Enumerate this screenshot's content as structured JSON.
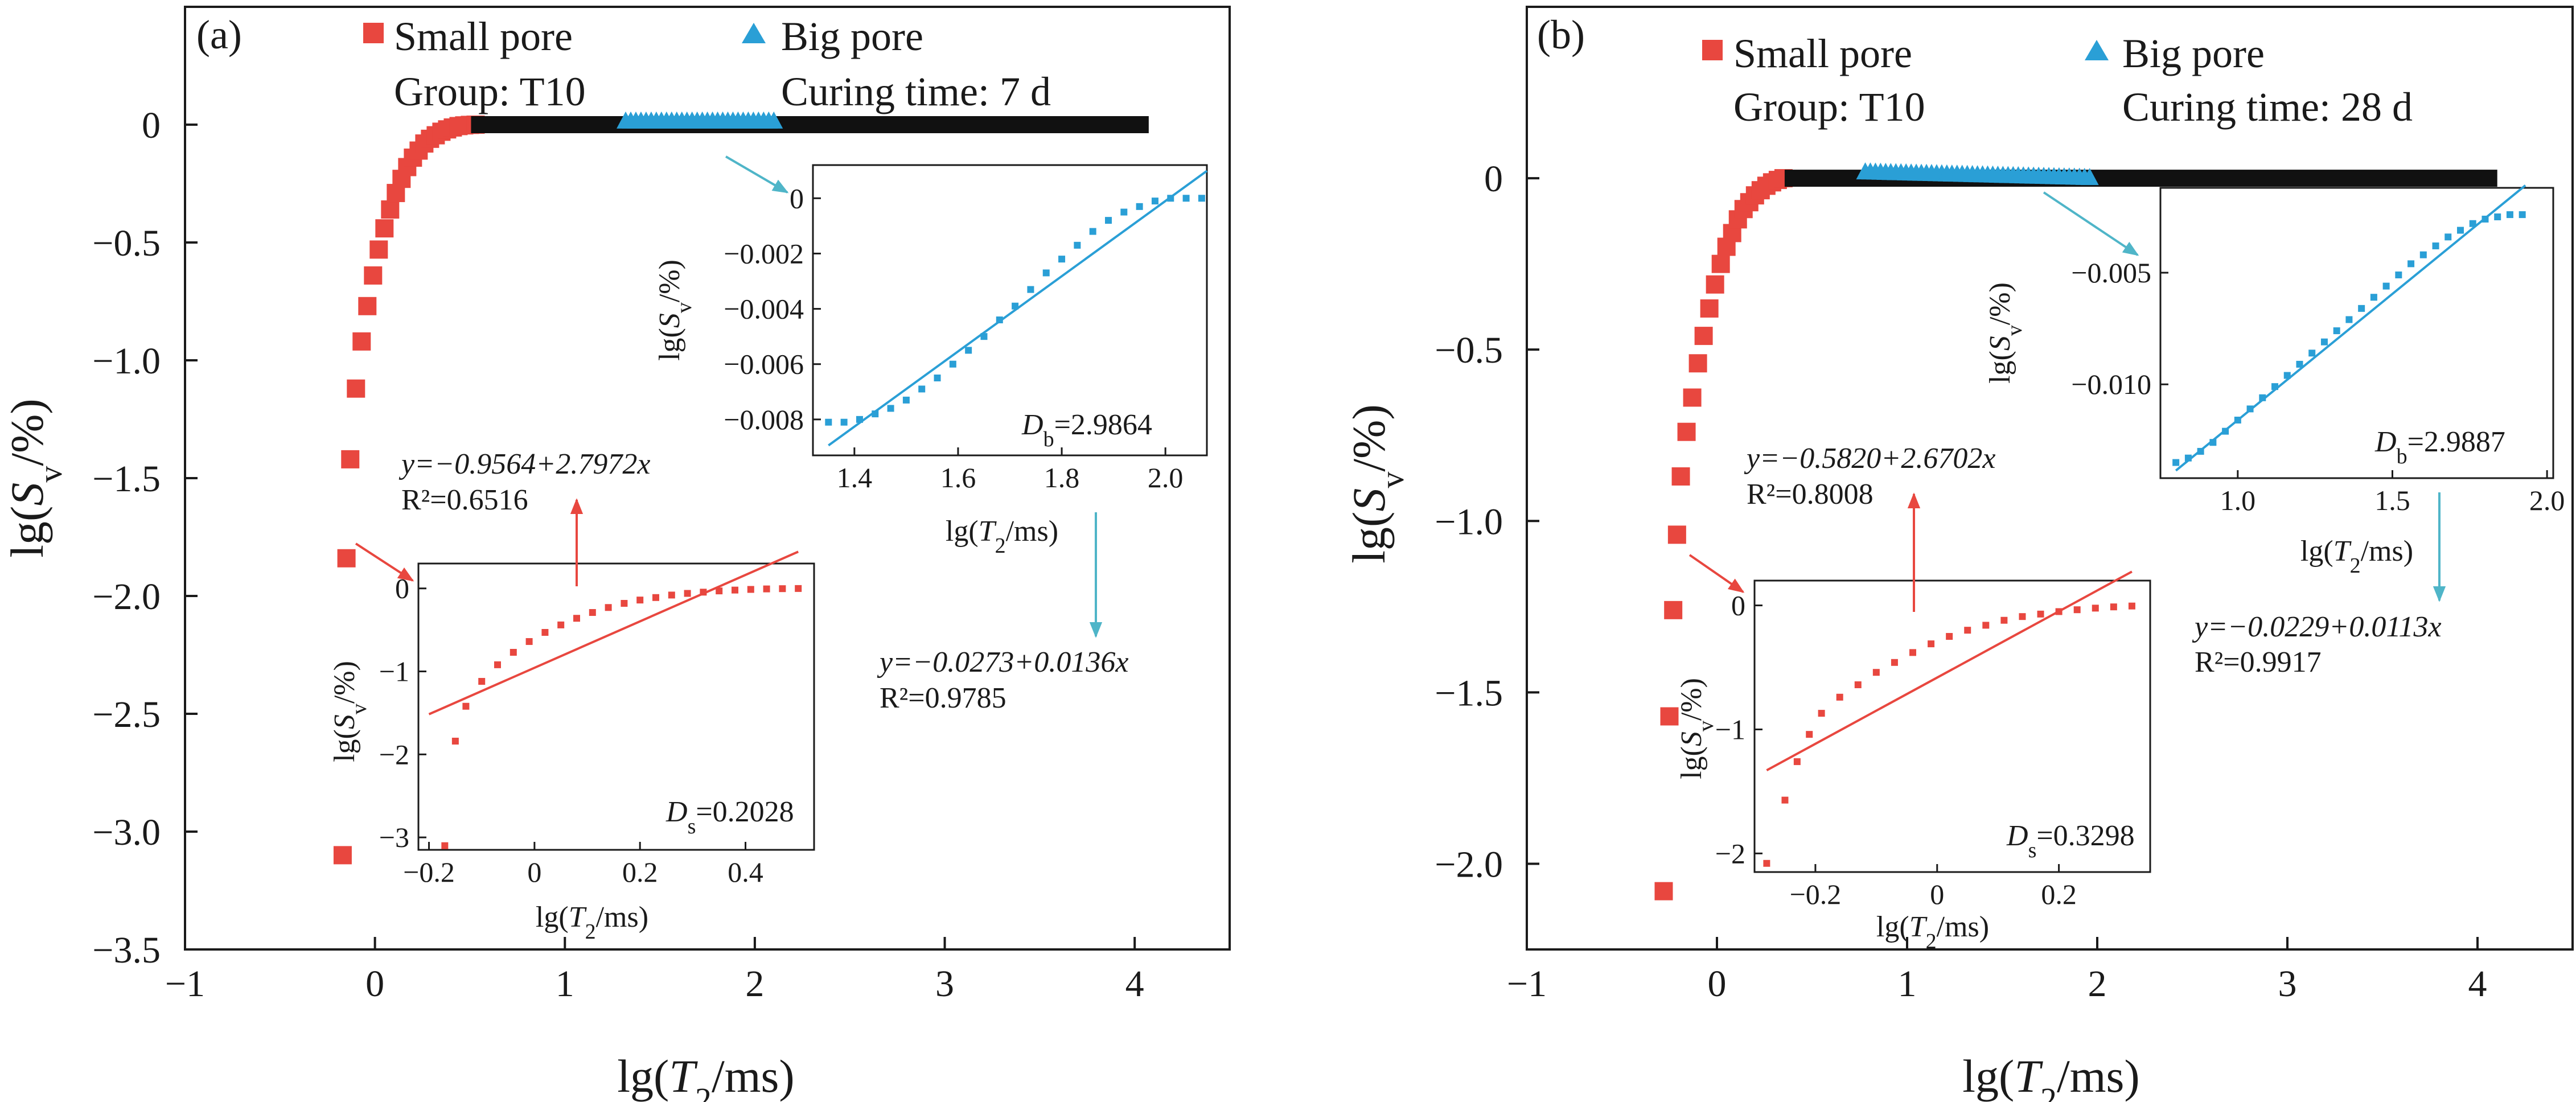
{
  "chart_data": [
    {
      "id": "a",
      "panel_label": "(a)",
      "type": "scatter",
      "xlabel_prefix": "lg(",
      "xlabel_var": "T",
      "xlabel_sub": "2",
      "xlabel_suffix": "/ms)",
      "ylabel_prefix": "lg(",
      "ylabel_var": "S",
      "ylabel_sub": "v",
      "ylabel_suffix": "/%)",
      "xlim": [
        -1,
        4.5
      ],
      "ylim": [
        -3.5,
        0.5
      ],
      "xticks": [
        -1,
        0,
        1,
        2,
        3,
        4
      ],
      "xtick_labels": [
        "−1",
        "0",
        "1",
        "2",
        "3",
        "4"
      ],
      "yticks": [
        0,
        -0.5,
        -1.0,
        -1.5,
        -2.0,
        -2.5,
        -3.0,
        -3.5
      ],
      "ytick_labels": [
        "0",
        "−0.5",
        "−1.0",
        "−1.5",
        "−2.0",
        "−2.5",
        "−3.0",
        "−3.5"
      ],
      "legend": {
        "small_pore": "Small pore",
        "big_pore": "Big pore",
        "group": "Group: T10",
        "curing": "Curing time: 7 d"
      },
      "series": [
        {
          "name": "Small pore",
          "color": "#e8473f",
          "marker": "square",
          "x": [
            -0.17,
            -0.15,
            -0.13,
            -0.1,
            -0.07,
            -0.04,
            -0.01,
            0.02,
            0.05,
            0.08,
            0.11,
            0.14,
            0.17,
            0.2,
            0.23,
            0.26,
            0.29,
            0.32,
            0.35,
            0.38,
            0.41,
            0.44,
            0.47,
            0.5,
            0.53
          ],
          "y": [
            -3.1,
            -1.84,
            -1.42,
            -1.12,
            -0.92,
            -0.77,
            -0.64,
            -0.53,
            -0.44,
            -0.36,
            -0.29,
            -0.23,
            -0.18,
            -0.14,
            -0.11,
            -0.08,
            -0.06,
            -0.045,
            -0.03,
            -0.02,
            -0.012,
            -0.006,
            -0.003,
            -0.001,
            0
          ]
        },
        {
          "name": "Black plateau",
          "color": "#111111",
          "marker": "square_dense",
          "x_start": 0.53,
          "x_end": 4.05,
          "y": 0
        },
        {
          "name": "Big pore",
          "color": "#2a9fd6",
          "marker": "triangle",
          "x_start": 1.32,
          "x_end": 2.1,
          "y": 0.01
        }
      ],
      "insets": [
        {
          "kind": "small",
          "xlim": [
            -0.22,
            0.53
          ],
          "ylim": [
            -3.15,
            0.3
          ],
          "xticks": [
            -0.2,
            0,
            0.2,
            0.4
          ],
          "xtick_labels": [
            "−0.2",
            "0",
            "0.2",
            "0.4"
          ],
          "yticks": [
            0,
            -1,
            -2,
            -3
          ],
          "ytick_labels": [
            "0",
            "−1",
            "−2",
            "−3"
          ],
          "color": "#e8473f",
          "x": [
            -0.17,
            -0.15,
            -0.13,
            -0.1,
            -0.07,
            -0.04,
            -0.01,
            0.02,
            0.05,
            0.08,
            0.11,
            0.14,
            0.17,
            0.2,
            0.23,
            0.26,
            0.29,
            0.32,
            0.35,
            0.38,
            0.41,
            0.44,
            0.47,
            0.5
          ],
          "y": [
            -3.1,
            -1.84,
            -1.42,
            -1.12,
            -0.92,
            -0.77,
            -0.64,
            -0.53,
            -0.44,
            -0.36,
            -0.29,
            -0.23,
            -0.18,
            -0.14,
            -0.11,
            -0.08,
            -0.06,
            -0.045,
            -0.03,
            -0.02,
            -0.012,
            -0.006,
            -0.003,
            -0.001
          ],
          "fit": {
            "a": -0.9564,
            "b": 2.7972,
            "x_start": -0.2,
            "x_end": 0.5
          },
          "d_var": "D",
          "d_sub": "s",
          "d_value": "=0.2028",
          "eq_text": "y=−0.9564+2.7972x",
          "r2_text": "R²=0.6516"
        },
        {
          "kind": "big",
          "xlim": [
            1.32,
            2.08
          ],
          "ylim": [
            -0.0093,
            0.0012
          ],
          "xticks": [
            1.4,
            1.6,
            1.8,
            2.0
          ],
          "xtick_labels": [
            "1.4",
            "1.6",
            "1.8",
            "2.0"
          ],
          "yticks": [
            0,
            -0.002,
            -0.004,
            -0.006,
            -0.008
          ],
          "ytick_labels": [
            "0",
            "−0.002",
            "−0.004",
            "−0.006",
            "−0.008"
          ],
          "color": "#2a9fd6",
          "x": [
            1.35,
            1.38,
            1.41,
            1.44,
            1.47,
            1.5,
            1.53,
            1.56,
            1.59,
            1.62,
            1.65,
            1.68,
            1.71,
            1.74,
            1.77,
            1.8,
            1.83,
            1.86,
            1.89,
            1.92,
            1.95,
            1.98,
            2.01,
            2.04,
            2.07
          ],
          "y": [
            -0.0081,
            -0.0081,
            -0.008,
            -0.0078,
            -0.0076,
            -0.0073,
            -0.0069,
            -0.0065,
            -0.006,
            -0.0055,
            -0.005,
            -0.0044,
            -0.0039,
            -0.0033,
            -0.0027,
            -0.0022,
            -0.0017,
            -0.0012,
            -0.0008,
            -0.0005,
            -0.0003,
            -0.0001,
            0,
            0,
            0
          ],
          "fit": {
            "a": -0.0273,
            "b": 0.0136,
            "x_start": 1.35,
            "x_end": 2.08
          },
          "d_var": "D",
          "d_sub": "b",
          "d_value": "=2.9864",
          "eq_text": "y=−0.0273+0.0136x",
          "r2_text": "R²=0.9785"
        }
      ]
    },
    {
      "id": "b",
      "panel_label": "(b)",
      "type": "scatter",
      "xlabel_prefix": "lg(",
      "xlabel_var": "T",
      "xlabel_sub": "2",
      "xlabel_suffix": "/ms)",
      "ylabel_prefix": "lg(",
      "ylabel_var": "S",
      "ylabel_sub": "v",
      "ylabel_suffix": "/%)",
      "xlim": [
        -1,
        4.5
      ],
      "ylim": [
        -2.25,
        0.5
      ],
      "xticks": [
        -1,
        0,
        1,
        2,
        3,
        4
      ],
      "xtick_labels": [
        "−1",
        "0",
        "1",
        "2",
        "3",
        "4"
      ],
      "yticks": [
        0,
        -0.5,
        -1.0,
        -1.5,
        -2.0
      ],
      "ytick_labels": [
        "0",
        "−0.5",
        "−1.0",
        "−1.5",
        "−2.0"
      ],
      "legend": {
        "small_pore": "Small pore",
        "big_pore": "Big pore",
        "group": "Group: T10",
        "curing": "Curing time: 28 d"
      },
      "series": [
        {
          "name": "Small pore",
          "color": "#e8473f",
          "marker": "square",
          "x": [
            -0.28,
            -0.25,
            -0.23,
            -0.21,
            -0.19,
            -0.16,
            -0.13,
            -0.1,
            -0.07,
            -0.04,
            -0.01,
            0.02,
            0.05,
            0.08,
            0.11,
            0.14,
            0.17,
            0.2,
            0.23,
            0.26,
            0.29,
            0.32,
            0.35
          ],
          "y": [
            -2.08,
            -1.57,
            -1.26,
            -1.04,
            -0.87,
            -0.74,
            -0.64,
            -0.54,
            -0.46,
            -0.38,
            -0.31,
            -0.25,
            -0.2,
            -0.16,
            -0.12,
            -0.09,
            -0.07,
            -0.05,
            -0.035,
            -0.022,
            -0.012,
            -0.005,
            0
          ]
        },
        {
          "name": "Black plateau",
          "color": "#111111",
          "marker": "square_dense",
          "x_start": 0.38,
          "x_end": 4.08,
          "y": 0
        },
        {
          "name": "Big pore",
          "color": "#2a9fd6",
          "marker": "triangle",
          "x_start": 0.78,
          "x_end": 1.96,
          "y": 0.005
        }
      ],
      "insets": [
        {
          "kind": "small",
          "xlim": [
            -0.3,
            0.35
          ],
          "ylim": [
            -2.15,
            0.2
          ],
          "xticks": [
            -0.2,
            0,
            0.2
          ],
          "xtick_labels": [
            "−0.2",
            "0",
            "0.2"
          ],
          "yticks": [
            0,
            -1,
            -2
          ],
          "ytick_labels": [
            "0",
            "−1",
            "−2"
          ],
          "color": "#e8473f",
          "x": [
            -0.28,
            -0.25,
            -0.23,
            -0.21,
            -0.19,
            -0.16,
            -0.13,
            -0.1,
            -0.07,
            -0.04,
            -0.01,
            0.02,
            0.05,
            0.08,
            0.11,
            0.14,
            0.17,
            0.2,
            0.23,
            0.26,
            0.29,
            0.32
          ],
          "y": [
            -2.08,
            -1.57,
            -1.26,
            -1.04,
            -0.87,
            -0.74,
            -0.64,
            -0.54,
            -0.46,
            -0.38,
            -0.31,
            -0.25,
            -0.2,
            -0.16,
            -0.12,
            -0.09,
            -0.07,
            -0.05,
            -0.035,
            -0.022,
            -0.012,
            -0.005
          ],
          "fit": {
            "a": -0.582,
            "b": 2.6702,
            "x_start": -0.28,
            "x_end": 0.32
          },
          "d_var": "D",
          "d_sub": "s",
          "d_value": "=0.3298",
          "eq_text": "y=−0.5820+2.6702x",
          "r2_text": "R²=0.8008"
        },
        {
          "kind": "big",
          "xlim": [
            0.75,
            2.02
          ],
          "ylim": [
            -0.0142,
            -0.0012
          ],
          "xticks": [
            1.0,
            1.5,
            2.0
          ],
          "xtick_labels": [
            "1.0",
            "1.5",
            "2.0"
          ],
          "yticks": [
            -0.005,
            -0.01
          ],
          "ytick_labels": [
            "−0.005",
            "−0.010"
          ],
          "color": "#2a9fd6",
          "x": [
            0.8,
            0.84,
            0.88,
            0.92,
            0.96,
            1.0,
            1.04,
            1.08,
            1.12,
            1.16,
            1.2,
            1.24,
            1.28,
            1.32,
            1.36,
            1.4,
            1.44,
            1.48,
            1.52,
            1.56,
            1.6,
            1.64,
            1.68,
            1.72,
            1.76,
            1.8,
            1.84,
            1.88,
            1.92
          ],
          "y": [
            -0.0135,
            -0.0133,
            -0.013,
            -0.0126,
            -0.0121,
            -0.0116,
            -0.0111,
            -0.0106,
            -0.0101,
            -0.0096,
            -0.0091,
            -0.0086,
            -0.0081,
            -0.0076,
            -0.0071,
            -0.0066,
            -0.0061,
            -0.0056,
            -0.0051,
            -0.0046,
            -0.0042,
            -0.0038,
            -0.0034,
            -0.0031,
            -0.0028,
            -0.0026,
            -0.0025,
            -0.0024,
            -0.0024
          ],
          "fit": {
            "a": -0.0229,
            "b": 0.0113,
            "x_start": 0.8,
            "x_end": 1.93
          },
          "d_var": "D",
          "d_sub": "b",
          "d_value": "=2.9887",
          "eq_text": "y=−0.0229+0.0113x",
          "r2_text": "R²=0.9917"
        }
      ]
    }
  ]
}
